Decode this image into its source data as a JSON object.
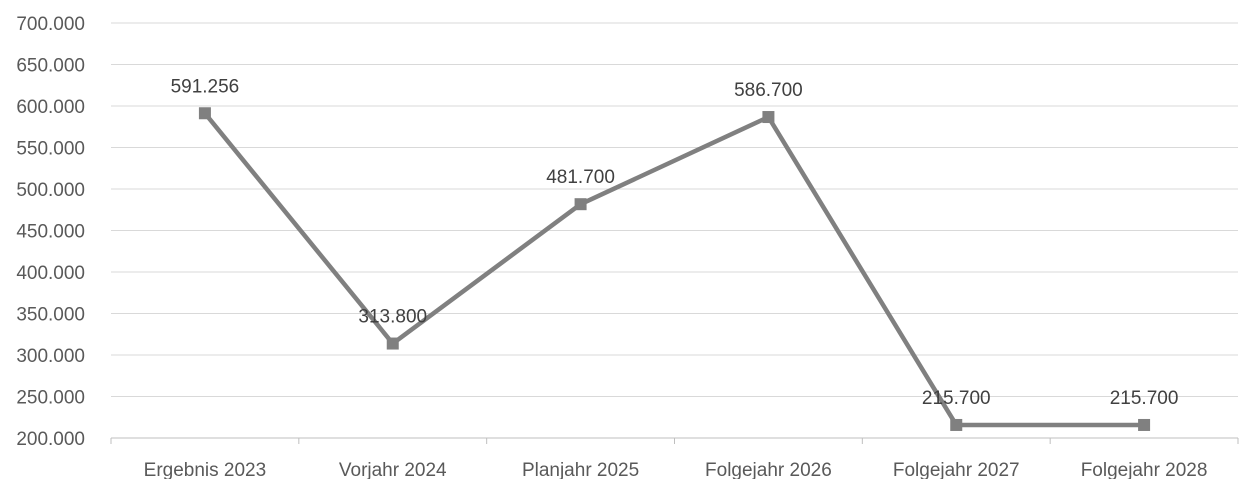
{
  "chart_data": {
    "type": "line",
    "title": "",
    "xlabel": "",
    "ylabel": "",
    "categories": [
      "Ergebnis 2023",
      "Vorjahr 2024",
      "Planjahr 2025",
      "Folgejahr 2026",
      "Folgejahr 2027",
      "Folgejahr 2028"
    ],
    "series": [
      {
        "values": [
          591256,
          313800,
          481700,
          586700,
          215700,
          215700
        ],
        "labels": [
          "591.256",
          "313.800",
          "481.700",
          "586.700",
          "215.700",
          "215.700"
        ],
        "color": "#808080",
        "marker": "square"
      }
    ],
    "ylim": [
      200000,
      700000
    ],
    "yticks": [
      200000,
      250000,
      300000,
      350000,
      400000,
      450000,
      500000,
      550000,
      600000,
      650000,
      700000
    ],
    "ytick_labels": [
      "200.000",
      "250.000",
      "300.000",
      "350.000",
      "400.000",
      "450.000",
      "500.000",
      "550.000",
      "600.000",
      "650.000",
      "700.000"
    ],
    "grid": true,
    "legend": "none"
  }
}
